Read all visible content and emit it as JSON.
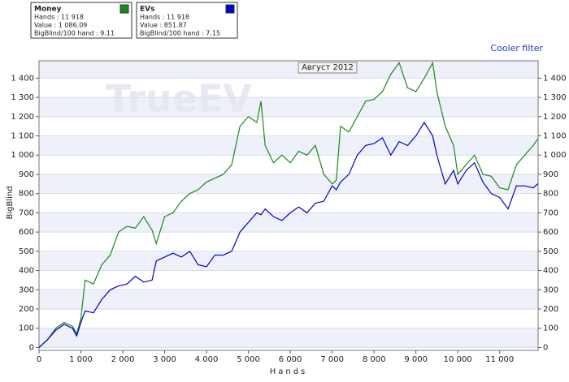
{
  "chart_data": {
    "type": "line",
    "watermark": "TrueEV",
    "annotation": "Август 2012",
    "link": "Cooler filter",
    "x_label": "Hands",
    "y_label": "BigBlind",
    "grid": true,
    "xlim": [
      0,
      11918
    ],
    "ylim": [
      -15,
      1490
    ],
    "xticks": [
      0,
      {
        "value": 1000,
        "label": "1 000"
      },
      {
        "value": 2000,
        "label": "2 000"
      },
      {
        "value": 3000,
        "label": "3 000"
      },
      {
        "value": 4000,
        "label": "4 000"
      },
      {
        "value": 5000,
        "label": "5 000"
      },
      {
        "value": 6000,
        "label": "6 000"
      },
      {
        "value": 7000,
        "label": "7 000"
      },
      {
        "value": 8000,
        "label": "8 000"
      },
      {
        "value": 9000,
        "label": "9 000"
      },
      {
        "value": 10000,
        "label": "10 000"
      },
      {
        "value": 11000,
        "label": "11 000"
      }
    ],
    "yticks": [
      0,
      100,
      200,
      300,
      400,
      500,
      600,
      700,
      800,
      900,
      {
        "value": 1000,
        "label": "1 000"
      },
      {
        "value": 1100,
        "label": "1 100"
      },
      {
        "value": 1200,
        "label": "1 200"
      },
      {
        "value": 1300,
        "label": "1 300"
      },
      {
        "value": 1400,
        "label": "1 400"
      }
    ],
    "x": [
      0,
      200,
      400,
      600,
      800,
      900,
      1000,
      1100,
      1300,
      1500,
      1700,
      1900,
      2100,
      2300,
      2500,
      2700,
      2800,
      3000,
      3200,
      3400,
      3600,
      3800,
      4000,
      4200,
      4400,
      4600,
      4800,
      5000,
      5200,
      5300,
      5400,
      5600,
      5800,
      6000,
      6200,
      6400,
      6600,
      6800,
      7000,
      7100,
      7200,
      7400,
      7600,
      7800,
      8000,
      8200,
      8400,
      8600,
      8800,
      9000,
      9200,
      9400,
      9500,
      9700,
      9900,
      10000,
      10200,
      10400,
      10600,
      10800,
      11000,
      11200,
      11400,
      11600,
      11800,
      11918
    ],
    "series": [
      {
        "name": "Money",
        "color": "#1a8a1a",
        "stats": [
          "Hands :  11 918",
          "Value : 1 086.09",
          "BigBlind/100 hand : 9.11"
        ],
        "values": [
          0,
          40,
          100,
          130,
          110,
          70,
          150,
          350,
          330,
          430,
          480,
          600,
          630,
          620,
          680,
          610,
          540,
          680,
          700,
          760,
          800,
          820,
          860,
          880,
          900,
          950,
          1150,
          1200,
          1170,
          1280,
          1050,
          960,
          1000,
          960,
          1020,
          1000,
          1050,
          900,
          850,
          870,
          1150,
          1120,
          1200,
          1280,
          1290,
          1330,
          1420,
          1480,
          1350,
          1330,
          1400,
          1480,
          1330,
          1150,
          1050,
          900,
          950,
          1000,
          900,
          890,
          830,
          820,
          950,
          1000,
          1050,
          1086.09
        ]
      },
      {
        "name": "EVs",
        "color": "#0000cc",
        "stats": [
          "Hands :  11 918",
          "Value :  851.87",
          "BigBlind/100 hand : 7.15"
        ],
        "values": [
          0,
          40,
          90,
          120,
          100,
          60,
          130,
          190,
          180,
          250,
          300,
          320,
          330,
          370,
          340,
          350,
          450,
          470,
          490,
          470,
          500,
          430,
          420,
          480,
          480,
          500,
          600,
          650,
          700,
          690,
          720,
          680,
          660,
          700,
          730,
          700,
          750,
          760,
          840,
          820,
          860,
          900,
          1000,
          1050,
          1060,
          1090,
          1000,
          1070,
          1050,
          1100,
          1170,
          1100,
          1000,
          850,
          920,
          850,
          920,
          960,
          860,
          800,
          780,
          720,
          840,
          840,
          830,
          851.87
        ]
      }
    ]
  }
}
